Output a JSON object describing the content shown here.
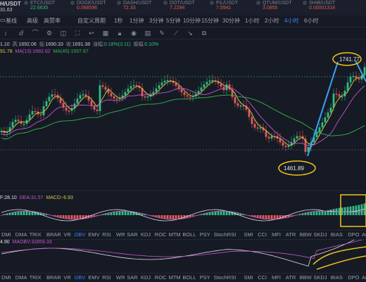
{
  "tickers": [
    {
      "name": "/USDT",
      "price": "31.63",
      "color": "#c9ccd3"
    },
    {
      "name": "ETC/USDT",
      "price": "22.6635",
      "color": "#2fbd85"
    },
    {
      "name": "DOGE/USDT",
      "price": "0.068596",
      "color": "#e25a5a"
    },
    {
      "name": "DASH/USDT",
      "price": "72.33",
      "color": "#e25a5a"
    },
    {
      "name": "DOT/USDT",
      "price": "7.2294",
      "color": "#e25a5a"
    },
    {
      "name": "FIL/USDT",
      "price": "7.5941",
      "color": "#e25a5a"
    },
    {
      "name": "QTUM/USDT",
      "price": "3.0855",
      "color": "#e25a5a"
    },
    {
      "name": "SHIB/USDT",
      "price": "0.00001318",
      "color": "#e25a5a"
    }
  ],
  "symbol": "H/USDT",
  "toolbar": {
    "items": [
      "基线",
      "高级",
      "高赞率",
      "自定义周期",
      "1秒",
      "1分钟",
      "3分钟",
      "5分钟",
      "10分钟",
      "15分钟",
      "30分钟",
      "1小时",
      "2小时",
      "4小时",
      "6小时"
    ],
    "active": "4小时"
  },
  "ohlc": {
    "open_val": "1.10",
    "high_label": "高:",
    "high_val": "1692.06",
    "low_label": "低:",
    "low_val": "1690.33",
    "close_label": "收:",
    "close_val": "1691.38",
    "change_label": "涨幅:",
    "change_val": "0.18%(3.11)",
    "amp_label": "振幅:",
    "amp_val": "0.10%"
  },
  "ma": {
    "ma_first": "91.78",
    "ma13_label": "MA(13):",
    "ma13_val": "1682.62",
    "ma45_label": "MA(45):",
    "ma45_val": "1597.67"
  },
  "annotations": {
    "high": "1741.77",
    "low": "1461.89"
  },
  "macd": {
    "dif": "F:28.10",
    "dea_label": "DEA:",
    "dea_val": "31.57",
    "macd_label": "MACD:",
    "macd_val": "-6.93"
  },
  "obv": {
    "val": "4.90",
    "maobv_label": "MAOBV:",
    "maobv_val": "32859.33"
  },
  "indicators": [
    "DMI",
    "DMA",
    "TRIX",
    "BRAR",
    "VR",
    "OBV",
    "EMV",
    "RSI",
    "WR",
    "SAR",
    "KDJ",
    "ROC",
    "MTM",
    "BOLL",
    "PSY",
    "StochRSI",
    "SMI",
    "CCI",
    "MFI",
    "ATR",
    "BBW",
    "SKDJ",
    "BIAS",
    "DPO",
    "AO",
    "Pos"
  ],
  "indicator_selected": "OBV",
  "colors": {
    "up": "#2fbd85",
    "down": "#e25a5a",
    "accent": "#3b82f6",
    "highlight": "#f0c419",
    "ma_yellow": "#d7c64a",
    "ma_purple": "#c158c8",
    "ma_green": "#35b54a"
  },
  "icons": [
    "chart-type-icon",
    "draw-icon",
    "indicator-icon",
    "settings-icon",
    "camera-icon",
    "fullscreen-icon",
    "undo-icon",
    "layers-icon",
    "lock-icon",
    "eye-icon",
    "calendar-icon",
    "pen-icon"
  ]
}
